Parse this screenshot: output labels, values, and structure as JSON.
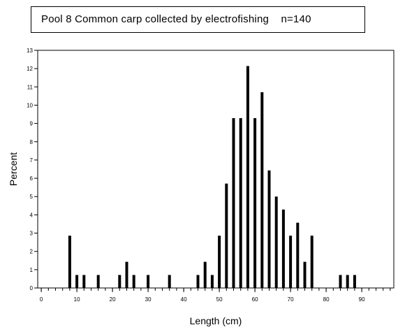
{
  "title": "Pool 8 Common carp collected by electrofishing    n=140",
  "chart_data": {
    "type": "bar",
    "title": "Pool 8 Common carp collected by electrofishing    n=140",
    "xlabel": "Length (cm)",
    "ylabel": "Percent",
    "xlim": [
      -1,
      99
    ],
    "ylim": [
      0,
      13
    ],
    "x_ticks": [
      0,
      10,
      20,
      30,
      40,
      50,
      60,
      70,
      80,
      90
    ],
    "y_ticks": [
      0,
      1,
      2,
      3,
      4,
      5,
      6,
      7,
      8,
      9,
      10,
      11,
      12,
      13
    ],
    "grid": false,
    "color": "#000000",
    "x": [
      8,
      10,
      12,
      16,
      22,
      24,
      26,
      30,
      36,
      44,
      46,
      48,
      50,
      52,
      54,
      56,
      58,
      60,
      62,
      64,
      66,
      68,
      70,
      72,
      74,
      76,
      84,
      86,
      88
    ],
    "values": [
      2.86,
      0.71,
      0.71,
      0.71,
      0.71,
      1.43,
      0.71,
      0.71,
      0.71,
      0.71,
      1.43,
      0.71,
      2.86,
      5.71,
      9.29,
      9.29,
      12.14,
      9.29,
      10.71,
      6.43,
      5.0,
      4.29,
      2.86,
      3.57,
      1.43,
      2.86,
      0.71,
      0.71,
      0.71
    ]
  }
}
